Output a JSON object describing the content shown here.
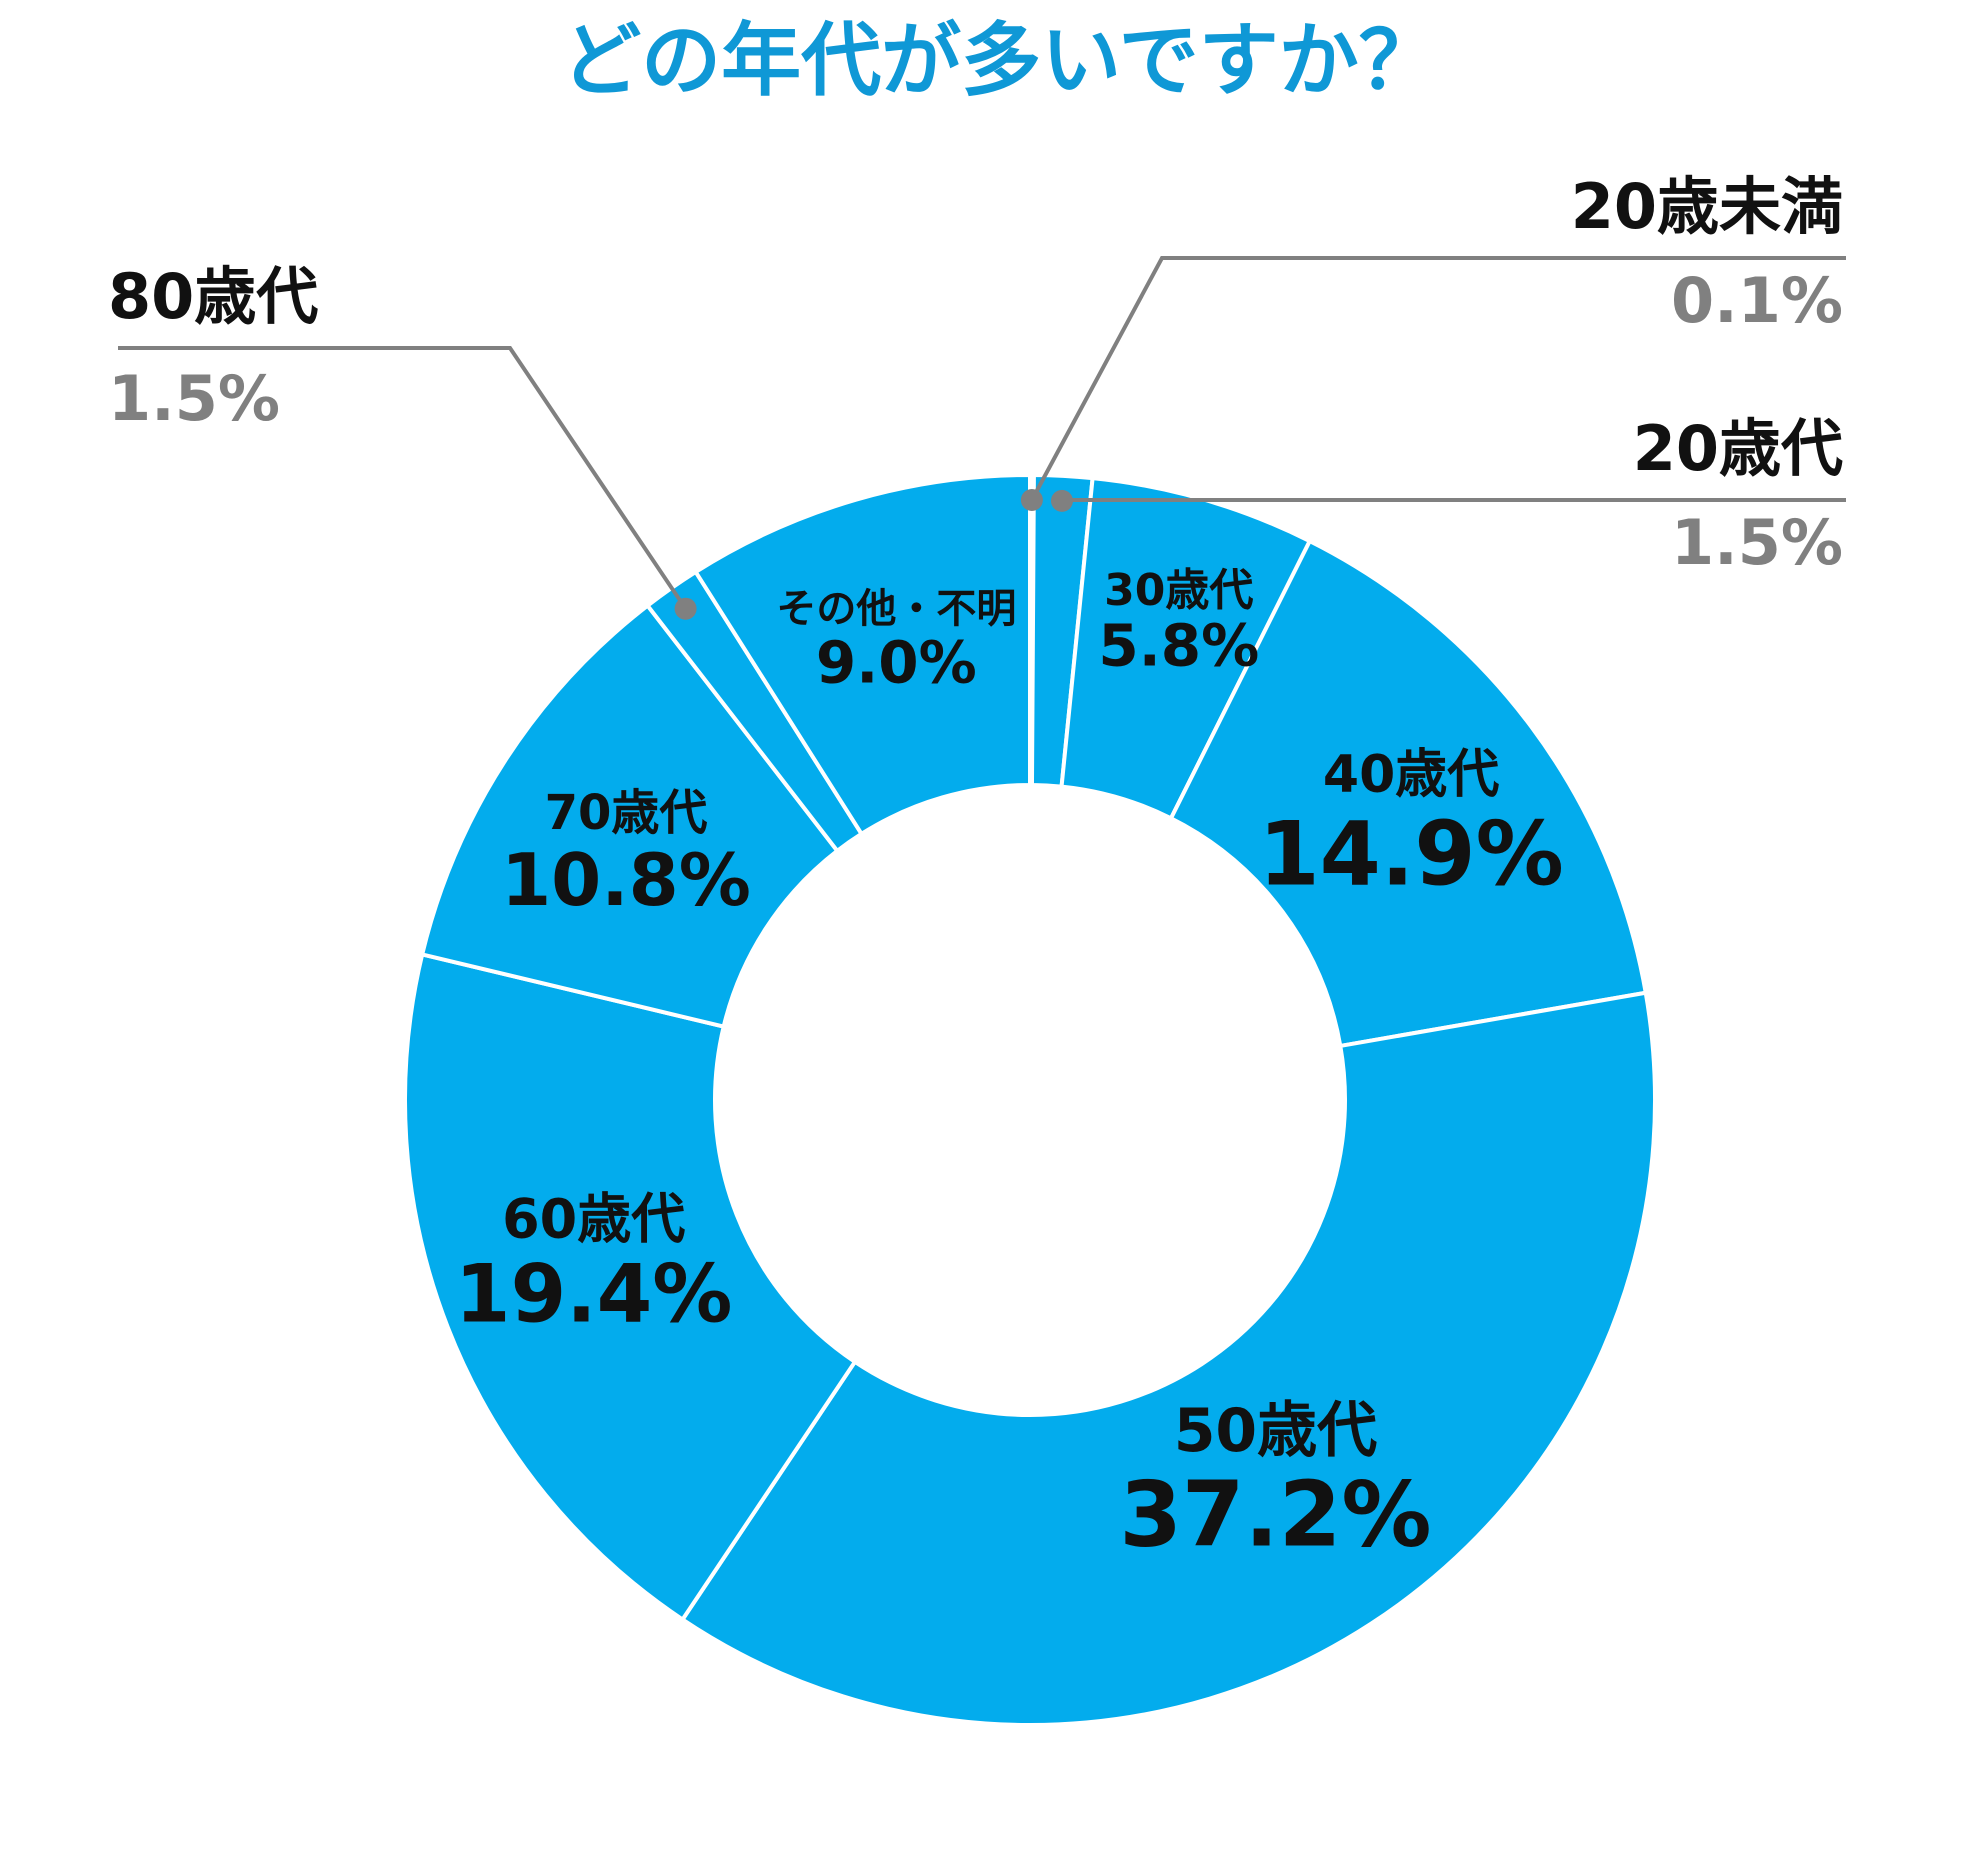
{
  "chart_data": {
    "type": "pie",
    "title": "どの年代が多いですか？",
    "slices": [
      {
        "label": "20歳未満",
        "value": 0.1,
        "value_label": "0.1%",
        "external": true
      },
      {
        "label": "20歳代",
        "value": 1.5,
        "value_label": "1.5%",
        "external": true
      },
      {
        "label": "30歳代",
        "value": 5.8,
        "value_label": "5.8%",
        "external": false
      },
      {
        "label": "40歳代",
        "value": 14.9,
        "value_label": "14.9%",
        "external": false
      },
      {
        "label": "50歳代",
        "value": 37.2,
        "value_label": "37.2%",
        "external": false
      },
      {
        "label": "60歳代",
        "value": 19.4,
        "value_label": "19.4%",
        "external": false
      },
      {
        "label": "70歳代",
        "value": 10.8,
        "value_label": "10.8%",
        "external": false
      },
      {
        "label": "80歳代",
        "value": 1.5,
        "value_label": "1.5%",
        "external": true
      },
      {
        "label": "その他・不明",
        "value": 9.0,
        "value_label": "9.0%",
        "external": false
      }
    ],
    "legend": "none",
    "donut": true
  },
  "colors": {
    "title": "#0f98d6",
    "slice_fill": "#03aced",
    "slice_border": "#ffffff",
    "leader_line": "#808080",
    "external_value": "#808080",
    "label_text": "#111111"
  }
}
